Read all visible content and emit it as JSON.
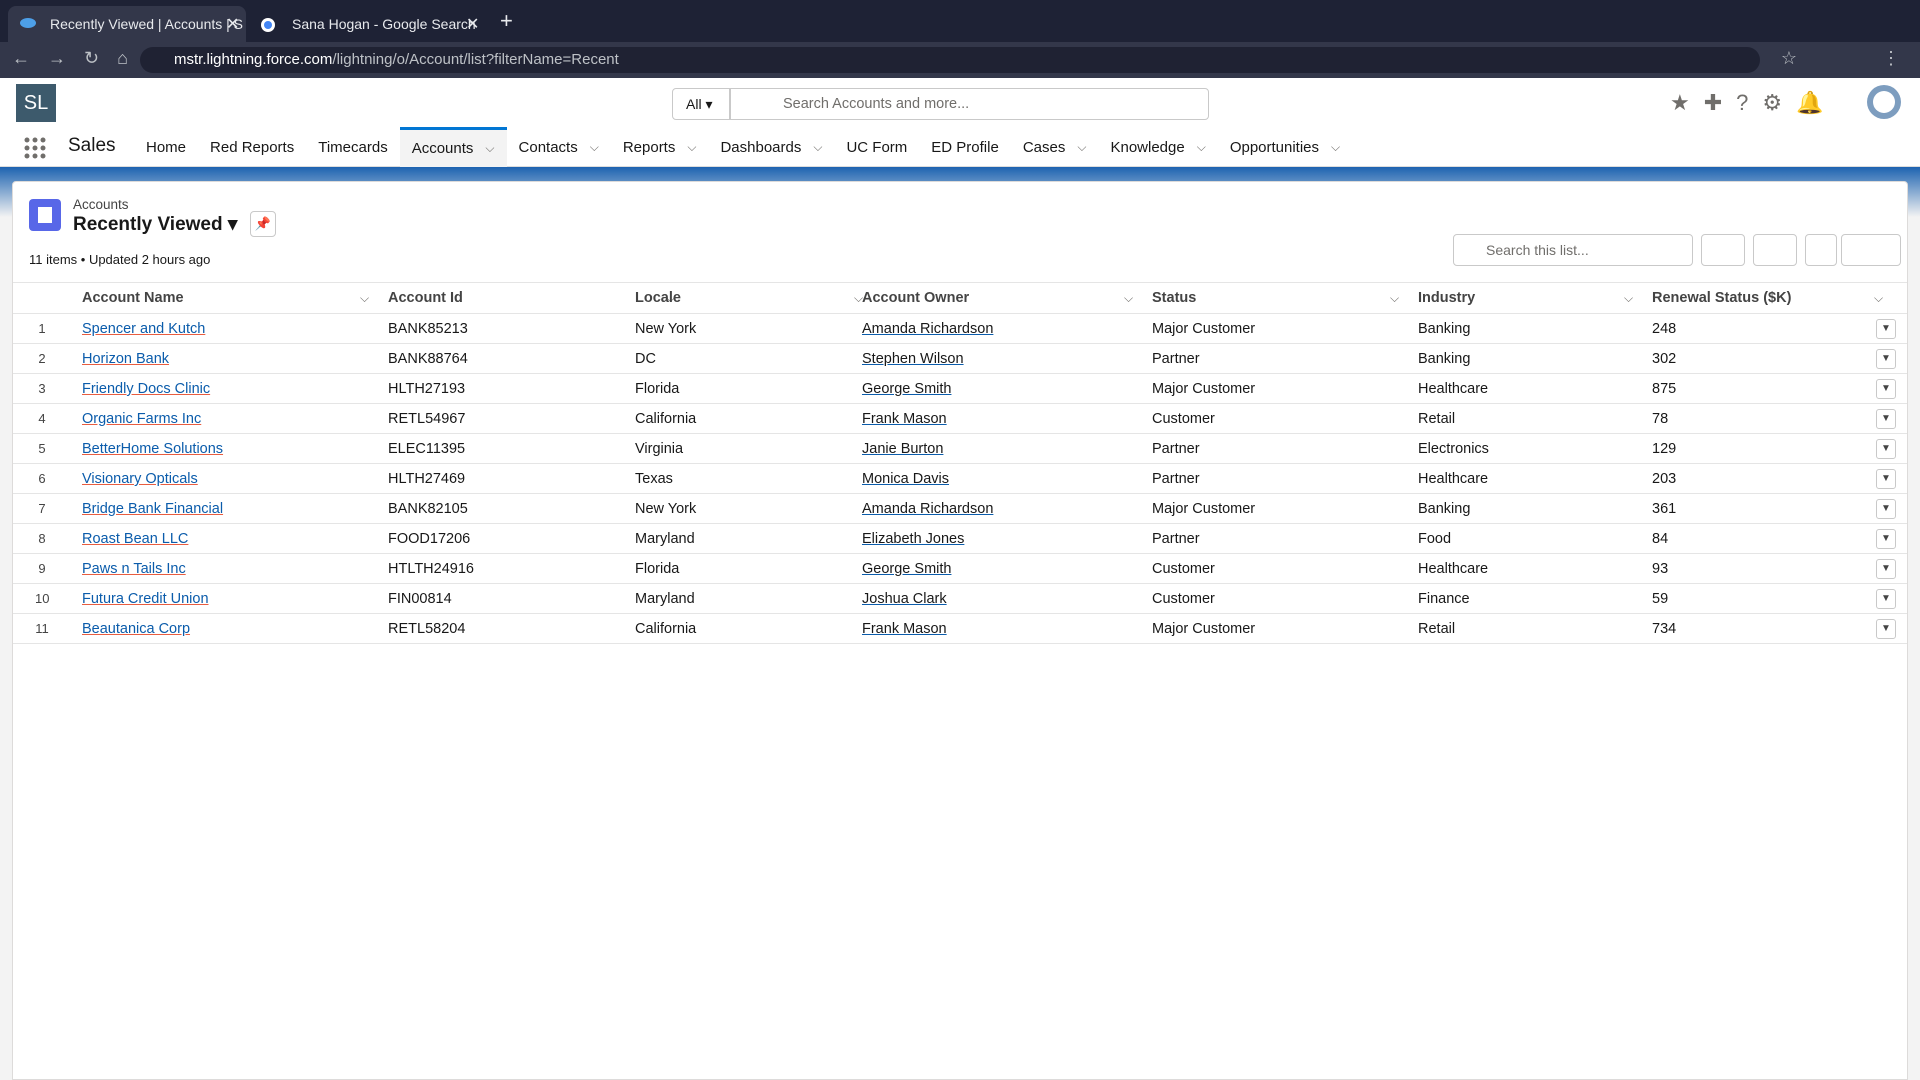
{
  "browser": {
    "tabs": [
      "Recently Viewed | Accounts | S",
      "Sana Hogan - Google Search"
    ],
    "url_host": "mstr.lightning.force.com",
    "url_path": "/lightning/o/Account/list?filterName=Recent"
  },
  "header": {
    "logo": "SL",
    "search_scope": "All",
    "search_placeholder": "Search Accounts and more..."
  },
  "nav": {
    "app": "Sales",
    "items": [
      {
        "label": "Home",
        "menu": false
      },
      {
        "label": "Red Reports",
        "menu": false
      },
      {
        "label": "Timecards",
        "menu": false
      },
      {
        "label": "Accounts",
        "menu": true,
        "active": true
      },
      {
        "label": "Contacts",
        "menu": true
      },
      {
        "label": "Reports",
        "menu": true
      },
      {
        "label": "Dashboards",
        "menu": true
      },
      {
        "label": "UC Form",
        "menu": false
      },
      {
        "label": "ED Profile",
        "menu": false
      },
      {
        "label": "Cases",
        "menu": true
      },
      {
        "label": "Knowledge",
        "menu": true
      },
      {
        "label": "Opportunities",
        "menu": true
      }
    ]
  },
  "list": {
    "object": "Accounts",
    "title": "Recently Viewed",
    "meta": "11 items • Updated 2 hours ago",
    "search_placeholder": "Search this list..."
  },
  "table": {
    "columns": [
      "Account Name",
      "Account Id",
      "Locale",
      "Account Owner",
      "Status",
      "Industry",
      "Renewal Status ($K)"
    ],
    "rows": [
      [
        1,
        "Spencer and Kutch",
        "BANK85213",
        "New York",
        "Amanda Richardson",
        "Major Customer",
        "Banking",
        248
      ],
      [
        2,
        "Horizon Bank",
        "BANK88764",
        "DC",
        "Stephen Wilson",
        "Partner",
        "Banking",
        302
      ],
      [
        3,
        "Friendly Docs Clinic",
        "HLTH27193",
        "Florida",
        "George Smith",
        "Major Customer",
        "Healthcare",
        875
      ],
      [
        4,
        "Organic Farms Inc",
        "RETL54967",
        "California",
        "Frank Mason",
        "Customer",
        "Retail",
        78
      ],
      [
        5,
        "BetterHome Solutions",
        "ELEC11395",
        "Virginia",
        "Janie Burton",
        "Partner",
        "Electronics",
        129
      ],
      [
        6,
        "Visionary Opticals",
        "HLTH27469",
        "Texas",
        "Monica Davis",
        "Partner",
        "Healthcare",
        203
      ],
      [
        7,
        "Bridge Bank Financial",
        "BANK82105",
        "New York",
        "Amanda Richardson",
        "Major Customer",
        "Banking",
        361
      ],
      [
        8,
        "Roast Bean LLC",
        "FOOD17206",
        "Maryland",
        "Elizabeth Jones",
        "Partner",
        "Food",
        84
      ],
      [
        9,
        "Paws n Tails Inc",
        "HTLTH24916",
        "Florida",
        "George Smith",
        "Customer",
        "Healthcare",
        93
      ],
      [
        10,
        "Futura Credit Union",
        "FIN00814",
        "Maryland",
        "Joshua Clark",
        "Customer",
        "Finance",
        59
      ],
      [
        11,
        "Beautanica Corp",
        "RETL58204",
        "California",
        "Frank Mason",
        "Major Customer",
        "Retail",
        734
      ]
    ]
  }
}
